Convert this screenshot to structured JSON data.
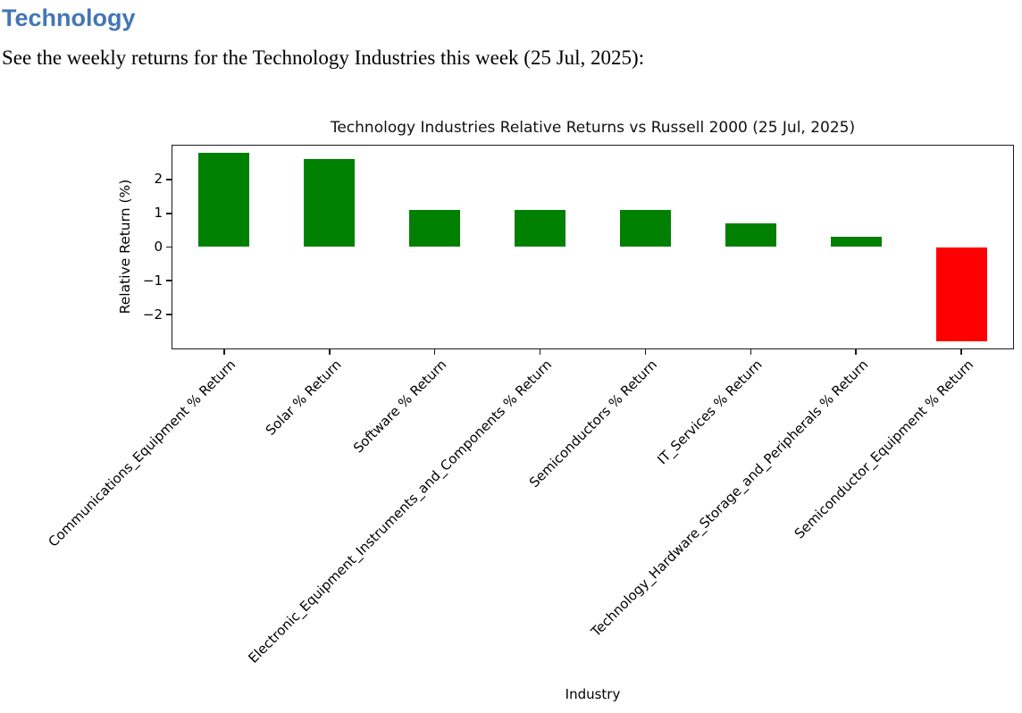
{
  "document": {
    "heading": "Technology",
    "heading_color": "#4276b4",
    "intro": "See the weekly returns for the Technology Industries this week (25 Jul, 2025):"
  },
  "chart_data": {
    "type": "bar",
    "title": "Technology Industries Relative Returns vs Russell 2000 (25 Jul, 2025)",
    "xlabel": "Industry",
    "ylabel": "Relative Return (%)",
    "categories": [
      "Communications_Equipment % Return",
      "Solar % Return",
      "Software % Return",
      "Electronic_Equipment_Instruments_and_Components % Return",
      "Semiconductors % Return",
      "IT_Services % Return",
      "Technology_Hardware_Storage_and_Peripherals % Return",
      "Semiconductor_Equipment % Return"
    ],
    "values": [
      2.8,
      2.6,
      1.1,
      1.1,
      1.1,
      0.7,
      0.3,
      -2.8
    ],
    "bar_colors": {
      "positive": "#008000",
      "negative": "#ff0000"
    },
    "yticks": [
      2,
      1,
      0,
      -1,
      -2
    ],
    "ylim": [
      -3.03,
      3.03
    ],
    "grid": false,
    "x_tick_rotation_deg": 45,
    "legend": "none"
  }
}
